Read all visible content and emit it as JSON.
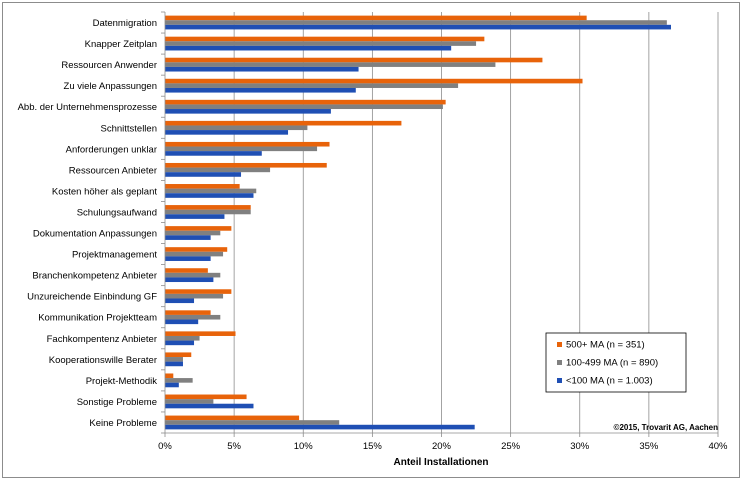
{
  "chart_data": {
    "type": "bar",
    "orientation": "horizontal",
    "categories": [
      "Datenmigration",
      "Knapper Zeitplan",
      "Ressourcen Anwender",
      "Zu viele Anpassungen",
      "Abb. der Unternehmensprozesse",
      "Schnittstellen",
      "Anforderungen unklar",
      "Ressourcen Anbieter",
      "Kosten höher als geplant",
      "Schulungsaufwand",
      "Dokumentation Anpassungen",
      "Projektmanagement",
      "Branchenkompetenz Anbieter",
      "Unzureichende Einbindung GF",
      "Kommunikation Projektteam",
      "Fachkompentenz Anbieter",
      "Kooperationswille Berater",
      "Projekt-Methodik",
      "Sonstige Probleme",
      "Keine Probleme"
    ],
    "series": [
      {
        "name": "500+ MA (n = 351)",
        "color": "#e8630a",
        "values": [
          30.5,
          23.1,
          27.3,
          30.2,
          20.3,
          17.1,
          11.9,
          11.7,
          5.4,
          6.2,
          4.8,
          4.5,
          3.1,
          4.8,
          3.3,
          5.1,
          1.9,
          0.6,
          5.9,
          9.7
        ]
      },
      {
        "name": "100-499  MA (n = 890)",
        "color": "#808080",
        "values": [
          36.3,
          22.5,
          23.9,
          21.2,
          20.1,
          10.3,
          11.0,
          7.6,
          6.6,
          6.2,
          4.0,
          4.2,
          4.0,
          4.2,
          4.0,
          2.5,
          1.3,
          2.0,
          3.5,
          12.6
        ]
      },
      {
        "name": "<100 MA (n = 1.003)",
        "color": "#1f4fb4",
        "values": [
          36.6,
          20.7,
          14.0,
          13.8,
          12.0,
          8.9,
          7.0,
          5.5,
          6.4,
          4.3,
          3.3,
          3.3,
          3.5,
          2.1,
          2.4,
          2.1,
          1.3,
          1.0,
          6.4,
          22.4
        ]
      }
    ],
    "xlabel": "Anteil Installationen",
    "xlim": [
      0,
      40
    ],
    "xticks": [
      0,
      5,
      10,
      15,
      20,
      25,
      30,
      35,
      40
    ],
    "xtick_labels": [
      "0%",
      "5%",
      "10%",
      "15%",
      "20%",
      "25%",
      "30%",
      "35%",
      "40%"
    ],
    "grid": "vertical",
    "legend_position": "bottom-right",
    "annotation": "©2015, Trovarit AG, Aachen"
  }
}
